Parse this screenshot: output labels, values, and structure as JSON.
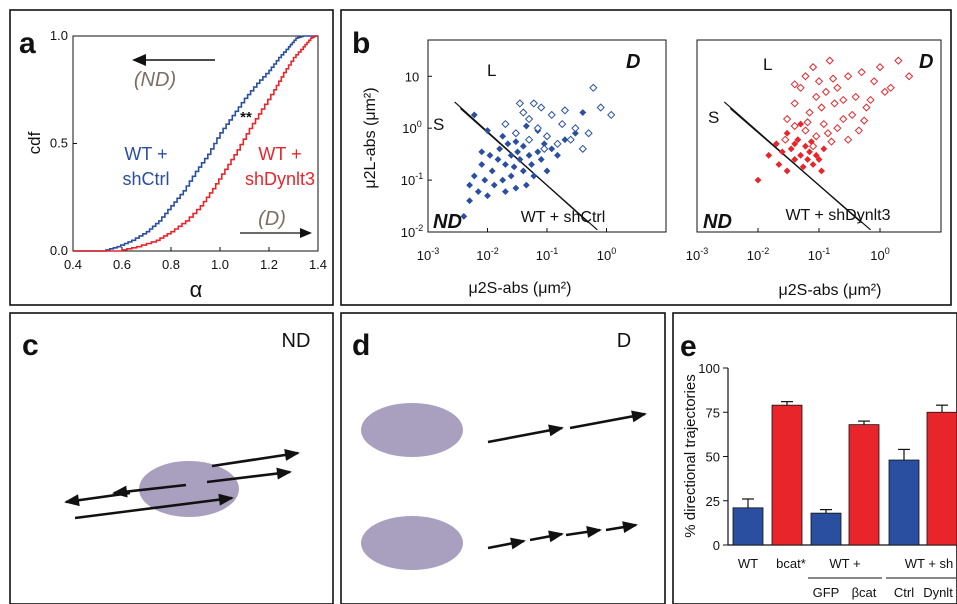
{
  "colors": {
    "blue": "#2a4fa0",
    "red": "#e8252b",
    "gray_text": "#7b6e66",
    "ellipse": "#a9a0c0",
    "black": "#111111"
  },
  "panels": {
    "a": {
      "letter": "a"
    },
    "b": {
      "letter": "b"
    },
    "c": {
      "letter": "c",
      "tag": "ND"
    },
    "d": {
      "letter": "d",
      "tag": "D"
    },
    "e": {
      "letter": "e"
    }
  },
  "chart_data": [
    {
      "type": "line",
      "panel": "a",
      "xlabel": "α",
      "ylabel": "cdf",
      "xlim": [
        0.4,
        1.4
      ],
      "ylim": [
        0.0,
        1.0
      ],
      "xticks": [
        "0.4",
        "0.6",
        "0.8",
        "1.0",
        "1.2",
        "1.4"
      ],
      "yticks": [
        "0.0",
        "0.5",
        "1.0"
      ],
      "annotations": {
        "nd": "(ND)",
        "d": "(D)",
        "sig": "**"
      },
      "series": [
        {
          "label_line1": "WT +",
          "label_line2": "shCtrl",
          "color": "#2a4fa0",
          "x": [
            0.52,
            0.58,
            0.64,
            0.7,
            0.75,
            0.8,
            0.85,
            0.9,
            0.95,
            1.0,
            1.05,
            1.1,
            1.15,
            1.2,
            1.24,
            1.28,
            1.31,
            1.34
          ],
          "y": [
            0.0,
            0.02,
            0.05,
            0.09,
            0.14,
            0.21,
            0.28,
            0.37,
            0.45,
            0.55,
            0.63,
            0.71,
            0.78,
            0.84,
            0.9,
            0.95,
            0.99,
            1.0
          ]
        },
        {
          "label_line1": "WT +",
          "label_line2": "shDynlt3",
          "color": "#e8252b",
          "x": [
            0.58,
            0.66,
            0.74,
            0.8,
            0.86,
            0.92,
            0.97,
            1.02,
            1.07,
            1.12,
            1.17,
            1.22,
            1.26,
            1.3,
            1.34,
            1.37,
            1.39
          ],
          "y": [
            0.0,
            0.02,
            0.05,
            0.09,
            0.14,
            0.21,
            0.29,
            0.38,
            0.47,
            0.57,
            0.66,
            0.75,
            0.83,
            0.9,
            0.95,
            0.99,
            1.0
          ]
        }
      ]
    },
    {
      "type": "scatter",
      "panel": "b-left",
      "xlabel": "μ2S-abs (μm²)",
      "ylabel": "μ2L-abs (μm²)",
      "scale": "log",
      "xlim": [
        0.001,
        10
      ],
      "ylim": [
        0.01,
        50
      ],
      "xticks": [
        "10-3",
        "10-2",
        "10-1",
        "100"
      ],
      "yticks": [
        "10-2",
        "10-1",
        "100",
        "10"
      ],
      "region_labels": {
        "s": "S",
        "l": "L",
        "nd": "ND",
        "d": "D"
      },
      "caption": "WT + shCtrl",
      "color": "#2a4fa0",
      "filled": [
        [
          0.004,
          0.02
        ],
        [
          0.005,
          0.04
        ],
        [
          0.005,
          0.08
        ],
        [
          0.006,
          0.12
        ],
        [
          0.007,
          0.06
        ],
        [
          0.008,
          0.2
        ],
        [
          0.008,
          0.35
        ],
        [
          0.009,
          0.1
        ],
        [
          0.01,
          0.05
        ],
        [
          0.011,
          0.3
        ],
        [
          0.012,
          0.15
        ],
        [
          0.013,
          0.08
        ],
        [
          0.015,
          0.25
        ],
        [
          0.016,
          0.4
        ],
        [
          0.018,
          0.1
        ],
        [
          0.02,
          0.2
        ],
        [
          0.02,
          0.06
        ],
        [
          0.022,
          0.5
        ],
        [
          0.025,
          0.3
        ],
        [
          0.025,
          0.12
        ],
        [
          0.028,
          0.18
        ],
        [
          0.03,
          0.07
        ],
        [
          0.032,
          0.35
        ],
        [
          0.035,
          0.25
        ],
        [
          0.04,
          0.15
        ],
        [
          0.04,
          0.45
        ],
        [
          0.045,
          0.08
        ],
        [
          0.05,
          0.3
        ],
        [
          0.055,
          0.2
        ],
        [
          0.06,
          0.12
        ],
        [
          0.07,
          0.35
        ],
        [
          0.08,
          0.25
        ],
        [
          0.09,
          0.5
        ],
        [
          0.1,
          0.15
        ],
        [
          0.12,
          0.4
        ],
        [
          0.15,
          0.3
        ],
        [
          0.2,
          0.6
        ],
        [
          0.3,
          0.8
        ],
        [
          0.4,
          2.0
        ],
        [
          0.006,
          1.8
        ],
        [
          0.01,
          0.9
        ],
        [
          0.018,
          0.7
        ],
        [
          0.045,
          1.1
        ],
        [
          0.03,
          0.55
        ],
        [
          0.07,
          0.9
        ]
      ],
      "open": [
        [
          0.02,
          1.2
        ],
        [
          0.03,
          0.8
        ],
        [
          0.04,
          2.0
        ],
        [
          0.05,
          1.5
        ],
        [
          0.06,
          3.0
        ],
        [
          0.07,
          1.0
        ],
        [
          0.08,
          2.5
        ],
        [
          0.1,
          0.7
        ],
        [
          0.12,
          1.8
        ],
        [
          0.15,
          0.5
        ],
        [
          0.18,
          1.2
        ],
        [
          0.2,
          2.2
        ],
        [
          0.25,
          0.6
        ],
        [
          0.3,
          1.0
        ],
        [
          0.4,
          0.4
        ],
        [
          0.5,
          0.8
        ],
        [
          0.6,
          6.0
        ],
        [
          0.8,
          2.5
        ],
        [
          1.2,
          1.8
        ],
        [
          0.05,
          0.6
        ],
        [
          0.09,
          0.4
        ],
        [
          0.035,
          3.0
        ]
      ]
    },
    {
      "type": "scatter",
      "panel": "b-right",
      "xlabel": "μ2S-abs (μm²)",
      "scale": "log",
      "xlim": [
        0.001,
        10
      ],
      "ylim": [
        0.01,
        50
      ],
      "xticks": [
        "10-3",
        "10-2",
        "10-1",
        "100"
      ],
      "region_labels": {
        "s": "S",
        "l": "L",
        "nd": "ND",
        "d": "D"
      },
      "caption": "WT + shDynlt3",
      "color": "#e8252b",
      "filled": [
        [
          0.01,
          0.1
        ],
        [
          0.015,
          0.3
        ],
        [
          0.02,
          0.5
        ],
        [
          0.022,
          0.2
        ],
        [
          0.025,
          0.35
        ],
        [
          0.03,
          0.15
        ],
        [
          0.035,
          0.4
        ],
        [
          0.04,
          0.25
        ],
        [
          0.045,
          0.6
        ],
        [
          0.05,
          0.3
        ],
        [
          0.055,
          0.18
        ],
        [
          0.06,
          0.45
        ],
        [
          0.065,
          0.25
        ],
        [
          0.07,
          0.35
        ],
        [
          0.08,
          0.2
        ],
        [
          0.09,
          0.3
        ],
        [
          0.1,
          0.25
        ],
        [
          0.12,
          0.4
        ],
        [
          0.03,
          0.8
        ],
        [
          0.05,
          1.2
        ],
        [
          0.04,
          0.5
        ],
        [
          0.075,
          0.55
        ],
        [
          0.11,
          0.15
        ]
      ],
      "open": [
        [
          0.03,
          1.5
        ],
        [
          0.04,
          3.0
        ],
        [
          0.05,
          6.0
        ],
        [
          0.06,
          10.0
        ],
        [
          0.07,
          2.0
        ],
        [
          0.08,
          15.0
        ],
        [
          0.09,
          4.0
        ],
        [
          0.1,
          8.0
        ],
        [
          0.12,
          1.2
        ],
        [
          0.15,
          20.0
        ],
        [
          0.18,
          3.0
        ],
        [
          0.2,
          6.0
        ],
        [
          0.25,
          1.5
        ],
        [
          0.3,
          10.0
        ],
        [
          0.4,
          4.0
        ],
        [
          0.5,
          12.0
        ],
        [
          0.6,
          2.5
        ],
        [
          0.8,
          8.0
        ],
        [
          1.0,
          15.0
        ],
        [
          1.5,
          6.0
        ],
        [
          2.0,
          20.0
        ],
        [
          3.0,
          10.0
        ],
        [
          0.06,
          0.9
        ],
        [
          0.09,
          0.7
        ],
        [
          0.14,
          0.8
        ],
        [
          0.2,
          1.0
        ],
        [
          0.3,
          0.6
        ],
        [
          0.35,
          1.8
        ],
        [
          0.45,
          0.9
        ],
        [
          0.7,
          3.5
        ],
        [
          0.04,
          1.1
        ],
        [
          0.11,
          2.5
        ],
        [
          0.13,
          5.0
        ],
        [
          0.25,
          3.5
        ],
        [
          1.2,
          5.0
        ],
        [
          0.55,
          1.4
        ],
        [
          0.08,
          0.45
        ],
        [
          0.16,
          0.55
        ],
        [
          0.028,
          0.6
        ],
        [
          0.065,
          1.3
        ],
        [
          0.17,
          9.0
        ],
        [
          0.04,
          7.0
        ]
      ]
    },
    {
      "type": "bar",
      "panel": "e",
      "ylabel": "% directional trajectories",
      "ylim": [
        0,
        100
      ],
      "yticks": [
        "0",
        "25",
        "50",
        "75",
        "100"
      ],
      "categories": [
        "WT",
        "bcat*",
        "GFP",
        "βcat",
        "Ctrl",
        "Dynlt"
      ],
      "group_labels": [
        {
          "label": "WT +",
          "span": [
            2,
            3
          ]
        },
        {
          "label": "WT + sh",
          "span": [
            4,
            5
          ]
        }
      ],
      "values": [
        21,
        79,
        18,
        68,
        48,
        75
      ],
      "errors": [
        5,
        2,
        2,
        2,
        6,
        4
      ],
      "colors": [
        "#2a4fa0",
        "#e8252b",
        "#2a4fa0",
        "#e8252b",
        "#2a4fa0",
        "#e8252b"
      ]
    }
  ]
}
